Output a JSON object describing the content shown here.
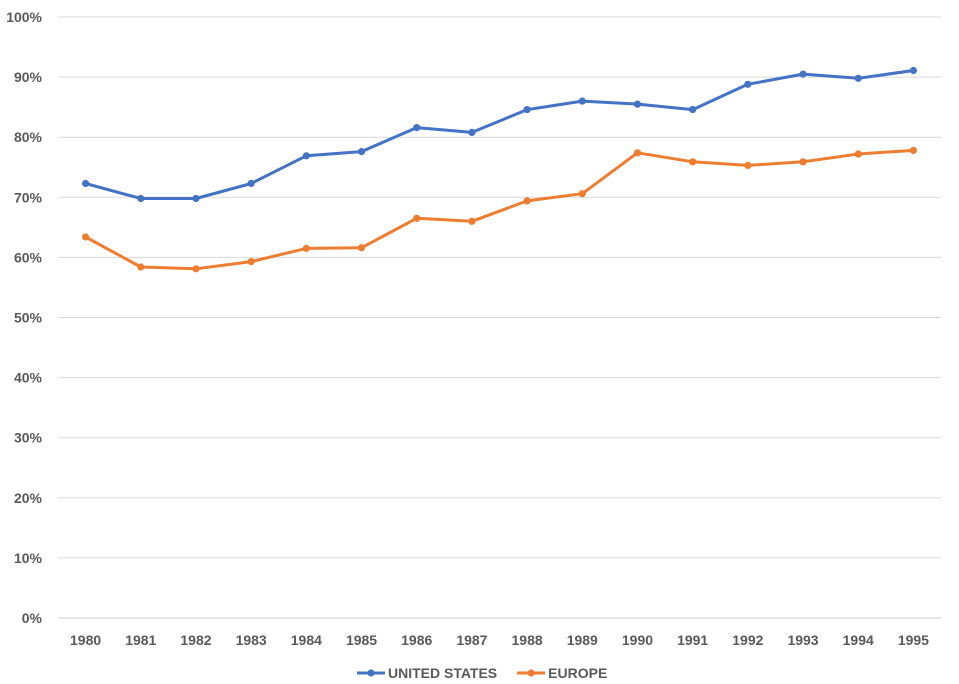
{
  "chart_data": {
    "type": "line",
    "x": [
      "1980",
      "1981",
      "1982",
      "1983",
      "1984",
      "1985",
      "1986",
      "1987",
      "1988",
      "1989",
      "1990",
      "1991",
      "1992",
      "1993",
      "1994",
      "1995"
    ],
    "series": [
      {
        "name": "UNITED STATES",
        "color": "#4472C4",
        "values": [
          72.3,
          69.8,
          69.8,
          72.3,
          76.9,
          77.6,
          81.6,
          80.8,
          84.6,
          86.0,
          85.5,
          84.6,
          88.8,
          90.5,
          89.8,
          91.1
        ]
      },
      {
        "name": "EUROPE",
        "color": "#ED7D31",
        "values": [
          63.4,
          58.4,
          58.1,
          59.3,
          61.5,
          61.6,
          66.5,
          66.0,
          69.4,
          70.6,
          77.4,
          75.9,
          75.3,
          75.9,
          77.2,
          77.8
        ]
      }
    ],
    "y_ticks": [
      "0%",
      "10%",
      "20%",
      "30%",
      "40%",
      "50%",
      "60%",
      "70%",
      "80%",
      "90%",
      "100%"
    ],
    "ylim": [
      0,
      100
    ],
    "grid": true,
    "legend_position": "bottom",
    "title": "",
    "xlabel": "",
    "ylabel": ""
  }
}
